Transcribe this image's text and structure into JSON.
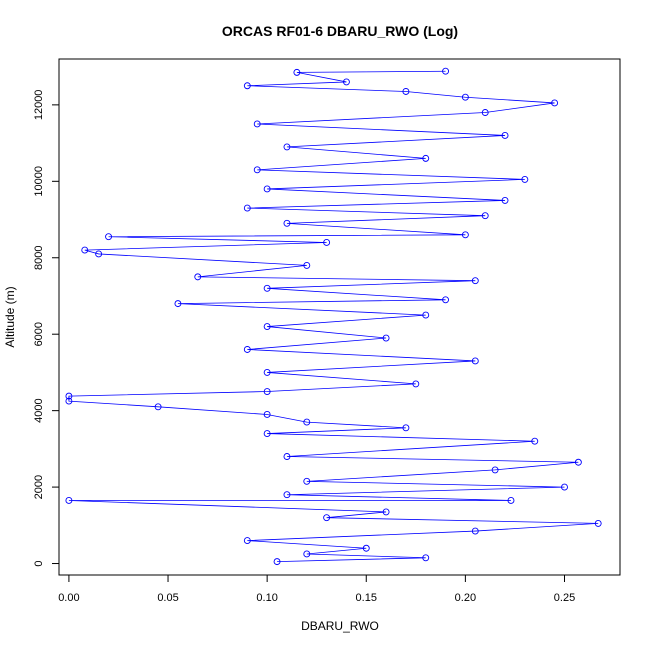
{
  "chart_data": {
    "type": "scatter",
    "title": "ORCAS RF01-6 DBARU_RWO (Log)",
    "xlabel": "DBARU_RWO",
    "ylabel": "Altitude (m)",
    "xlim": [
      -0.005,
      0.278
    ],
    "ylim": [
      -300,
      13200
    ],
    "x_ticks": [
      0.0,
      0.05,
      0.1,
      0.15,
      0.2,
      0.25
    ],
    "x_tick_labels": [
      "0.00",
      "0.05",
      "0.10",
      "0.15",
      "0.20",
      "0.25"
    ],
    "y_ticks": [
      0,
      2000,
      4000,
      6000,
      8000,
      10000,
      12000
    ],
    "y_tick_labels": [
      "0",
      "2000",
      "4000",
      "6000",
      "8000",
      "10000",
      "12000"
    ],
    "marker": "open-circle",
    "connected": true,
    "grid": false,
    "legend": "none",
    "color": "#0000ff",
    "series_points": [
      [
        0.105,
        50
      ],
      [
        0.18,
        150
      ],
      [
        0.12,
        250
      ],
      [
        0.15,
        400
      ],
      [
        0.09,
        600
      ],
      [
        0.205,
        850
      ],
      [
        0.267,
        1050
      ],
      [
        0.13,
        1200
      ],
      [
        0.16,
        1350
      ],
      [
        0.0,
        1650
      ],
      [
        0.223,
        1650
      ],
      [
        0.11,
        1800
      ],
      [
        0.25,
        2000
      ],
      [
        0.12,
        2150
      ],
      [
        0.215,
        2450
      ],
      [
        0.257,
        2650
      ],
      [
        0.11,
        2800
      ],
      [
        0.235,
        3200
      ],
      [
        0.1,
        3400
      ],
      [
        0.17,
        3550
      ],
      [
        0.12,
        3700
      ],
      [
        0.1,
        3900
      ],
      [
        0.045,
        4100
      ],
      [
        0.0,
        4250
      ],
      [
        0.0,
        4380
      ],
      [
        0.1,
        4500
      ],
      [
        0.175,
        4700
      ],
      [
        0.1,
        5000
      ],
      [
        0.205,
        5300
      ],
      [
        0.09,
        5600
      ],
      [
        0.16,
        5900
      ],
      [
        0.1,
        6200
      ],
      [
        0.18,
        6500
      ],
      [
        0.055,
        6800
      ],
      [
        0.19,
        6900
      ],
      [
        0.1,
        7200
      ],
      [
        0.205,
        7400
      ],
      [
        0.065,
        7500
      ],
      [
        0.12,
        7800
      ],
      [
        0.015,
        8100
      ],
      [
        0.008,
        8200
      ],
      [
        0.13,
        8400
      ],
      [
        0.02,
        8550
      ],
      [
        0.2,
        8600
      ],
      [
        0.11,
        8900
      ],
      [
        0.21,
        9100
      ],
      [
        0.09,
        9300
      ],
      [
        0.22,
        9500
      ],
      [
        0.1,
        9800
      ],
      [
        0.23,
        10050
      ],
      [
        0.095,
        10300
      ],
      [
        0.18,
        10600
      ],
      [
        0.11,
        10900
      ],
      [
        0.22,
        11200
      ],
      [
        0.095,
        11500
      ],
      [
        0.21,
        11800
      ],
      [
        0.245,
        12050
      ],
      [
        0.2,
        12200
      ],
      [
        0.17,
        12350
      ],
      [
        0.09,
        12500
      ],
      [
        0.14,
        12600
      ],
      [
        0.115,
        12850
      ],
      [
        0.19,
        12880
      ]
    ],
    "series_points_note_hidden": ""
  }
}
